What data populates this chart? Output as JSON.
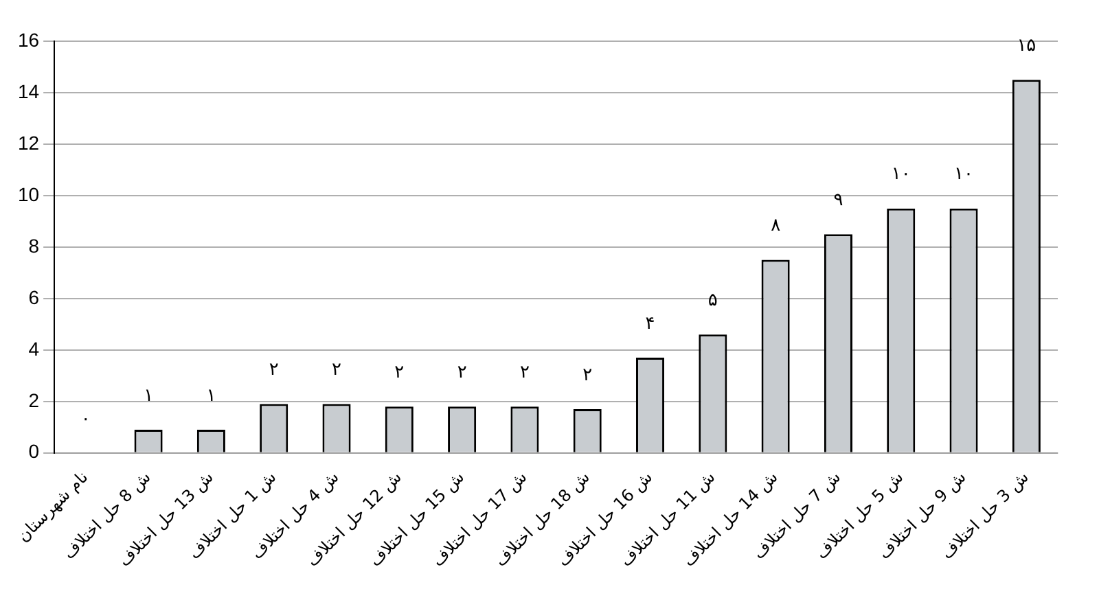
{
  "chart_data": {
    "type": "bar",
    "categories": [
      "نام شهرستان",
      "ش 8 حل اختلاف",
      "ش 13 حل اختلاف",
      "ش 1 حل اختلاف",
      "ش 4 حل اختلاف",
      "ش 12 حل اختلاف",
      "ش 15 حل اختلاف",
      "ش 17 حل اختلاف",
      "ش 18 حل اختلاف",
      "ش 16 حل اختلاف",
      "ش 11 حل اختلاف",
      "ش 14 حل اختلاف",
      "ش 7 حل اختلاف",
      "ش 5 حل اختلاف",
      "ش 9 حل اختلاف",
      "ش 3 حل اختلاف"
    ],
    "values": [
      0,
      0.9,
      0.9,
      1.9,
      1.9,
      1.8,
      1.8,
      1.8,
      1.7,
      3.7,
      4.6,
      7.5,
      8.5,
      9.5,
      9.5,
      14.5
    ],
    "value_labels": [
      "۰",
      "۱",
      "۱",
      "۲",
      "۲",
      "۲",
      "۲",
      "۲",
      "۲",
      "۴",
      "۵",
      "۸",
      "۹",
      "۱۰",
      "۱۰",
      "۱۵"
    ],
    "color": "#c8ccd0",
    "ylim": [
      0,
      16
    ],
    "yticks": [
      0,
      2,
      4,
      6,
      8,
      10,
      12,
      14,
      16
    ],
    "grid": "y",
    "legend": false
  }
}
